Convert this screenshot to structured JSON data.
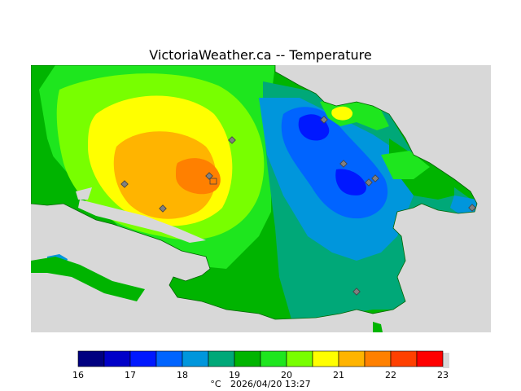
{
  "header": {
    "title": "VictoriaWeather.ca -- Temperature"
  },
  "legend": {
    "unit": "°C",
    "timestamp": "2026/04/20 13:27",
    "ticks": [
      "16",
      "17",
      "18",
      "19",
      "20",
      "21",
      "22",
      "23"
    ],
    "colors": [
      "#000080",
      "#0000c8",
      "#0018ff",
      "#0064ff",
      "#0096dc",
      "#00a878",
      "#00b400",
      "#1ee61e",
      "#78ff00",
      "#ffff00",
      "#ffb400",
      "#ff8000",
      "#ff4000",
      "#ff0000"
    ]
  },
  "map": {
    "land_color": "#00a000",
    "water_color": "#d8d8d8",
    "station_color": "#808080"
  }
}
